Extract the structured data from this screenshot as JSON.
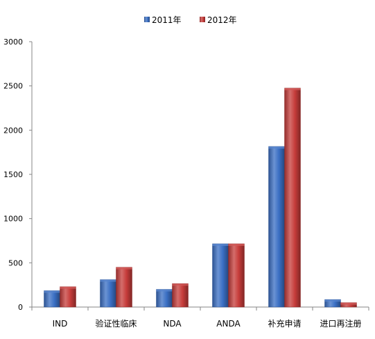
{
  "chart_data": {
    "type": "bar",
    "title": "",
    "xlabel": "",
    "ylabel": "",
    "categories": [
      "IND",
      "验证性临床",
      "NDA",
      "ANDA",
      "补充申请",
      "进口再注册"
    ],
    "series": [
      {
        "name": "2011年",
        "color": "#3a6fc4",
        "values": [
          185,
          310,
          200,
          715,
          1815,
          85
        ]
      },
      {
        "name": "2012年",
        "color": "#c63c3a",
        "values": [
          230,
          450,
          265,
          715,
          2475,
          50
        ]
      }
    ],
    "ylim": [
      0,
      3000
    ],
    "yticks": [
      0,
      500,
      1000,
      1500,
      2000,
      2500,
      3000
    ],
    "grid": false,
    "legend_position": "top"
  }
}
